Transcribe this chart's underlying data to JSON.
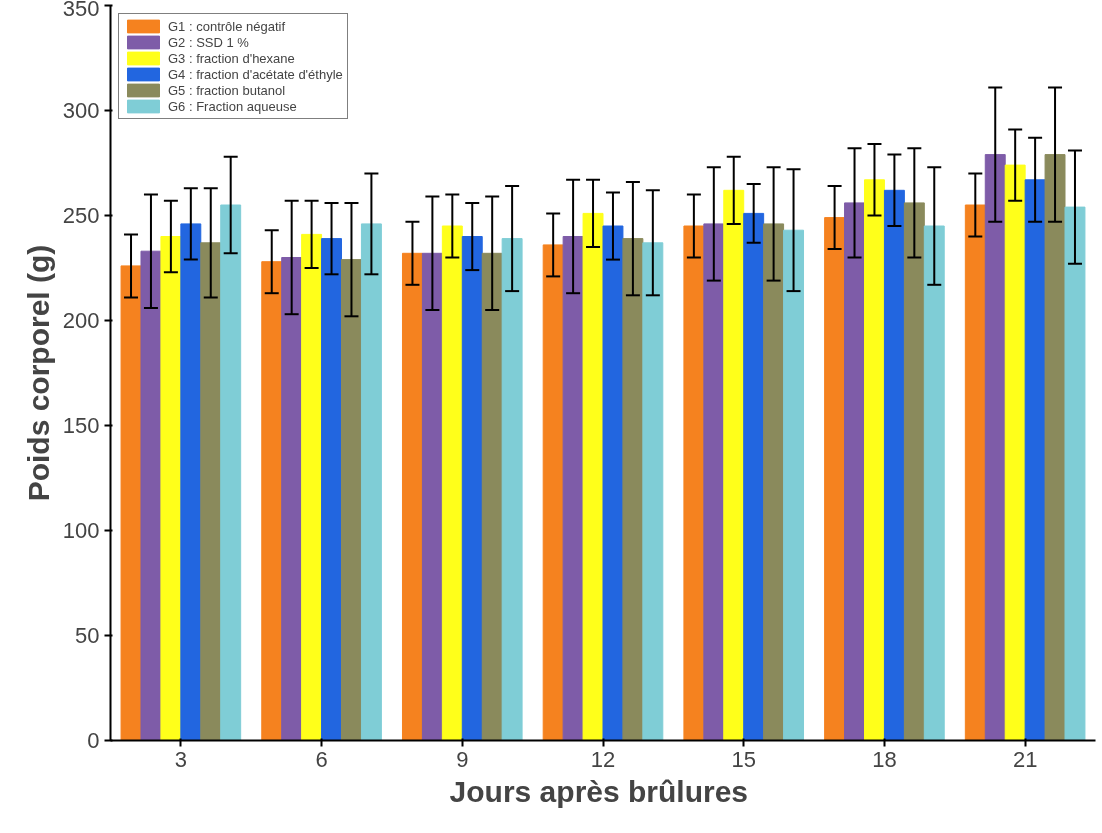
{
  "chart_data": {
    "type": "bar",
    "xlabel": "Jours après  brûlures",
    "ylabel": "Poids corporel (g)",
    "categories": [
      "3",
      "6",
      "9",
      "12",
      "15",
      "18",
      "21"
    ],
    "ylim": [
      0,
      350
    ],
    "yticks": [
      0,
      50,
      100,
      150,
      200,
      250,
      300,
      350
    ],
    "grid": false,
    "legend": "top left",
    "series": [
      {
        "name": "G1 : contrôle négatif",
        "color": "#f5821f",
        "values": [
          226,
          228,
          232,
          236,
          245,
          249,
          255
        ],
        "errors": [
          15,
          15,
          15,
          15,
          15,
          15,
          15
        ]
      },
      {
        "name": "G2 : SSD 1 %",
        "color": "#7e5ca8",
        "values": [
          233,
          230,
          232,
          240,
          246,
          256,
          279
        ],
        "errors": [
          27,
          27,
          27,
          27,
          27,
          26,
          32
        ]
      },
      {
        "name": "G3 : fraction d'hexane",
        "color": "#ffff1a",
        "values": [
          240,
          241,
          245,
          251,
          262,
          267,
          274
        ],
        "errors": [
          17,
          16,
          15,
          16,
          16,
          17,
          17
        ]
      },
      {
        "name": "G4 : fraction d'acétate d'éthyle",
        "color": "#2266e0",
        "values": [
          246,
          239,
          240,
          245,
          251,
          262,
          267
        ],
        "errors": [
          17,
          17,
          16,
          16,
          14,
          17,
          20
        ]
      },
      {
        "name": "G5 : fraction butanol",
        "color": "#8a8a5c",
        "values": [
          237,
          229,
          232,
          239,
          246,
          256,
          279
        ],
        "errors": [
          26,
          27,
          27,
          27,
          27,
          26,
          32
        ]
      },
      {
        "name": "G6 : Fraction aqueuse",
        "color": "#7fcdd6",
        "values": [
          255,
          246,
          239,
          237,
          243,
          245,
          254
        ],
        "errors": [
          23,
          24,
          25,
          25,
          29,
          28,
          27
        ]
      }
    ]
  }
}
